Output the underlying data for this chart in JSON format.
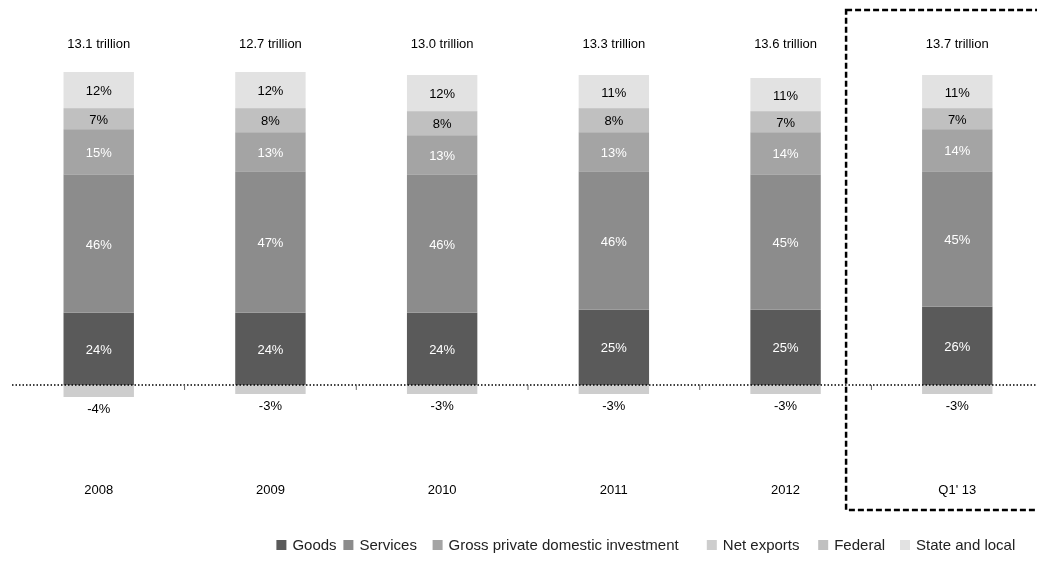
{
  "chart_data": {
    "type": "bar",
    "stacked": true,
    "categories": [
      "2008",
      "2009",
      "2010",
      "2011",
      "2012",
      "Q1' 13"
    ],
    "series": [
      {
        "name": "Goods",
        "color": "#5a5a5a",
        "values": [
          24,
          24,
          24,
          25,
          25,
          26
        ],
        "value_labels": [
          "24%",
          "24%",
          "24%",
          "25%",
          "25%",
          "26%"
        ]
      },
      {
        "name": "Services",
        "color": "#8c8c8c",
        "values": [
          46,
          47,
          46,
          46,
          45,
          45
        ],
        "value_labels": [
          "46%",
          "47%",
          "46%",
          "46%",
          "45%",
          "45%"
        ]
      },
      {
        "name": "Gross private domestic investment",
        "color": "#a4a4a4",
        "values": [
          15,
          13,
          13,
          13,
          14,
          14
        ],
        "value_labels": [
          "15%",
          "13%",
          "13%",
          "13%",
          "14%",
          "14%"
        ]
      },
      {
        "name": "Net exports",
        "color": "#cdcdcd",
        "values": [
          -4,
          -3,
          -3,
          -3,
          -3,
          -3
        ],
        "value_labels": [
          "-4%",
          "-3%",
          "-3%",
          "-3%",
          "-3%",
          "-3%"
        ]
      },
      {
        "name": "Federal",
        "color": "#c0c0c0",
        "values": [
          7,
          8,
          8,
          8,
          7,
          7
        ],
        "value_labels": [
          "7%",
          "8%",
          "8%",
          "8%",
          "7%",
          "7%"
        ]
      },
      {
        "name": "State and local",
        "color": "#e2e2e2",
        "values": [
          12,
          12,
          12,
          11,
          11,
          11
        ],
        "value_labels": [
          "12%",
          "12%",
          "12%",
          "11%",
          "11%",
          "11%"
        ]
      }
    ],
    "annotations": [
      "13.1 trillion",
      "12.7 trillion",
      "13.0 trillion",
      "13.3 trillion",
      "13.6 trillion",
      "13.7 trillion"
    ],
    "ref_lines": [
      {
        "axis": "y",
        "value": 0,
        "color": "#000000",
        "line_style": "dotted"
      }
    ],
    "legend": "bottom"
  }
}
